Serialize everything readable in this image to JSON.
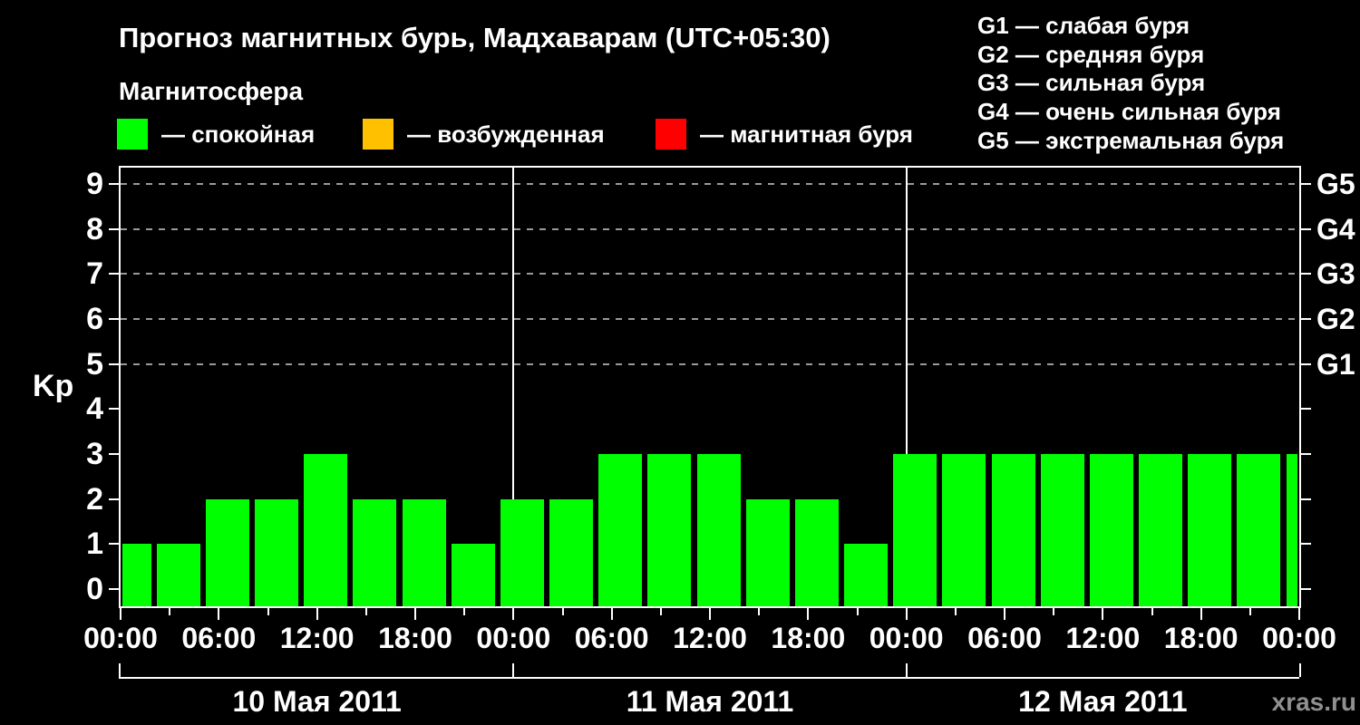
{
  "title": "Прогноз магнитных бурь, Мадхаварам (UTC+05:30)",
  "subtitle": "Магнитосфера",
  "status_legend": [
    {
      "name": "quiet",
      "label": "— спокойная",
      "color": "#00ff00"
    },
    {
      "name": "excited",
      "label": "— возбужденная",
      "color": "#ffc000"
    },
    {
      "name": "storm",
      "label": "— магнитная буря",
      "color": "#ff0000"
    }
  ],
  "g_scale_legend": [
    "G1 — слабая буря",
    "G2 — средняя буря",
    "G3 — сильная буря",
    "G4 — очень сильная буря",
    "G5 — экстремальная буря"
  ],
  "watermark": "xras.ru",
  "chart_data": {
    "type": "bar",
    "title": "Прогноз магнитных бурь, Мадхаварам (UTC+05:30)",
    "ylabel": "Kp",
    "y_ticks": [
      0,
      1,
      2,
      3,
      4,
      5,
      6,
      7,
      8,
      9
    ],
    "ylim": [
      -0.38,
      9.36
    ],
    "gridlines_at": [
      5,
      6,
      7,
      8,
      9
    ],
    "grid_style": "dashed",
    "right_axis_labels": [
      {
        "label": "G1",
        "kp": 5
      },
      {
        "label": "G2",
        "kp": 6
      },
      {
        "label": "G3",
        "kp": 7
      },
      {
        "label": "G4",
        "kp": 8
      },
      {
        "label": "G5",
        "kp": 9
      }
    ],
    "bar_color": "#00ff00",
    "x_hours_step": 3,
    "x_major_tick_every_hours": 6,
    "x_tick_labels": [
      "00:00",
      "06:00",
      "12:00",
      "18:00",
      "00:00",
      "06:00",
      "12:00",
      "18:00",
      "00:00",
      "06:00",
      "12:00",
      "18:00",
      "00:00"
    ],
    "days": [
      {
        "label": "10 Мая 2011",
        "kp": [
          1,
          1,
          2,
          2,
          3,
          2,
          2,
          1
        ]
      },
      {
        "label": "11 Мая 2011",
        "kp": [
          2,
          2,
          3,
          3,
          3,
          2,
          2,
          1
        ]
      },
      {
        "label": "12 Мая 2011",
        "kp": [
          3,
          3,
          3,
          3,
          3,
          3,
          3,
          3
        ]
      }
    ],
    "next_day_first_kp": 3
  }
}
